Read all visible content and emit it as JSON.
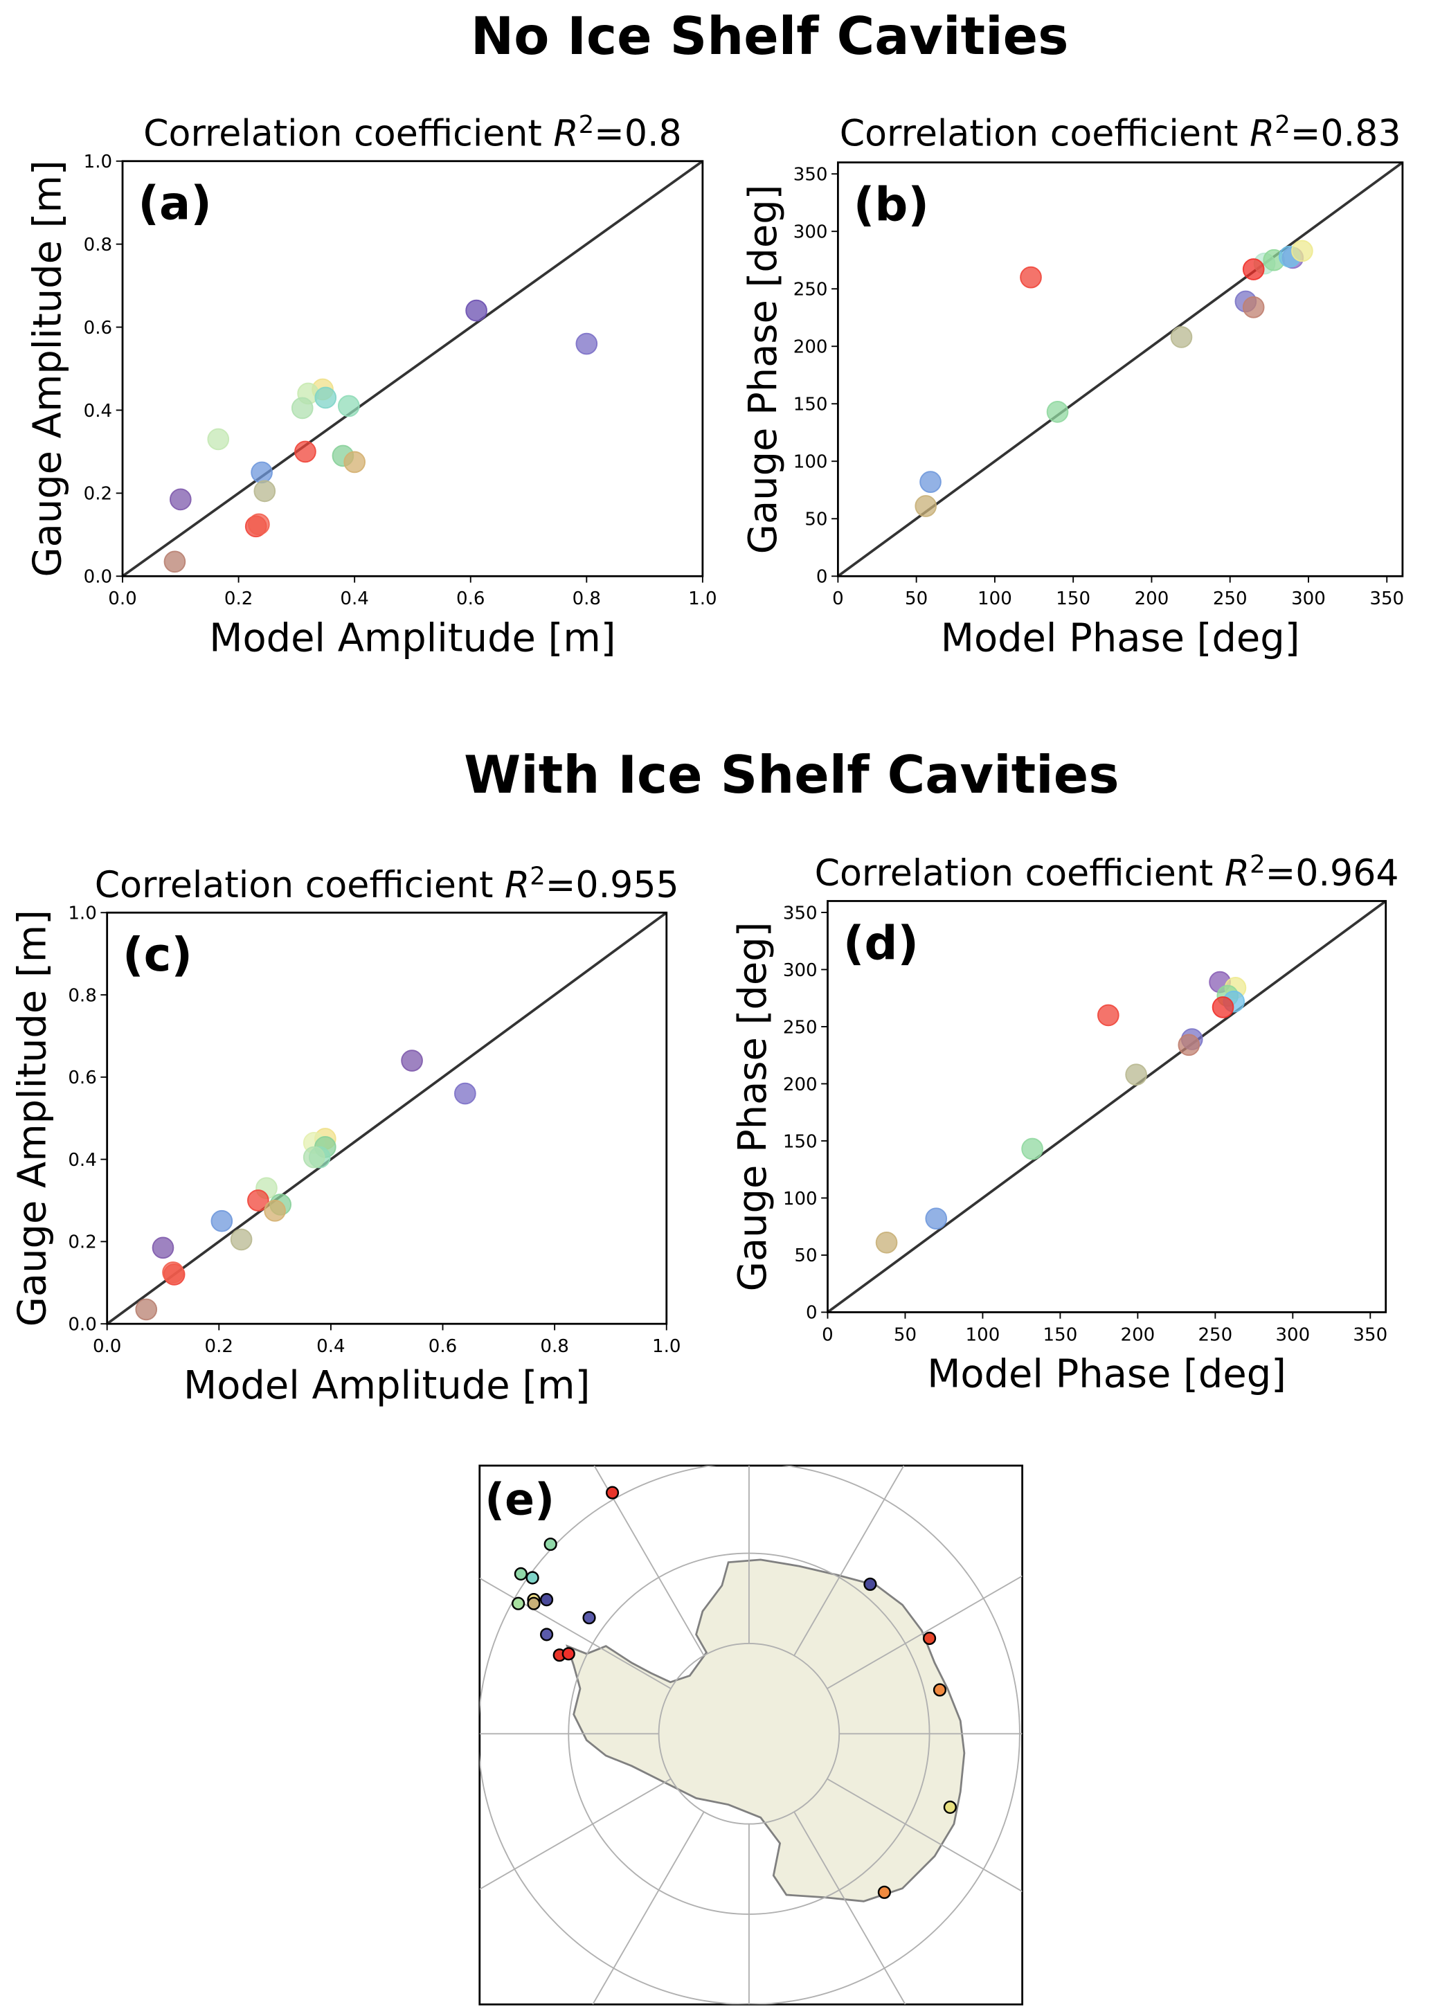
{
  "chart_data": [
    {
      "id": "a",
      "type": "scatter",
      "section": "No Ice Shelf Cavities",
      "panel_label": "(a)",
      "title_prefix": "Correlation coefficient ",
      "r2_label": "R",
      "r2_value": "=0.8",
      "xlabel": "Model Amplitude [m]",
      "ylabel": "Gauge Amplitude [m]",
      "xlim": [
        0,
        1.0
      ],
      "ylim": [
        0,
        1.0
      ],
      "xticks": [
        "0.0",
        "0.2",
        "0.4",
        "0.6",
        "0.8",
        "1.0"
      ],
      "yticks": [
        "0.0",
        "0.2",
        "0.4",
        "0.6",
        "0.8",
        "1.0"
      ],
      "points": [
        {
          "x": 0.61,
          "y": 0.64,
          "color": "#6a4fb0"
        },
        {
          "x": 0.8,
          "y": 0.56,
          "color": "#7b6fc6"
        },
        {
          "x": 0.345,
          "y": 0.45,
          "color": "#f0e08a"
        },
        {
          "x": 0.32,
          "y": 0.44,
          "color": "#c8eab0"
        },
        {
          "x": 0.35,
          "y": 0.43,
          "color": "#7fd4c8"
        },
        {
          "x": 0.31,
          "y": 0.405,
          "color": "#b0e0b0"
        },
        {
          "x": 0.39,
          "y": 0.41,
          "color": "#90dcb8"
        },
        {
          "x": 0.165,
          "y": 0.33,
          "color": "#c4e8b4"
        },
        {
          "x": 0.315,
          "y": 0.3,
          "color": "#f0453a"
        },
        {
          "x": 0.38,
          "y": 0.29,
          "color": "#88d09a"
        },
        {
          "x": 0.4,
          "y": 0.275,
          "color": "#d4b070"
        },
        {
          "x": 0.24,
          "y": 0.25,
          "color": "#6f98dc"
        },
        {
          "x": 0.245,
          "y": 0.205,
          "color": "#b8b890"
        },
        {
          "x": 0.1,
          "y": 0.185,
          "color": "#7e5aac"
        },
        {
          "x": 0.23,
          "y": 0.12,
          "color": "#f0453a"
        },
        {
          "x": 0.235,
          "y": 0.125,
          "color": "#f26050"
        },
        {
          "x": 0.09,
          "y": 0.035,
          "color": "#b88070"
        }
      ]
    },
    {
      "id": "b",
      "type": "scatter",
      "section": "No Ice Shelf Cavities",
      "panel_label": "(b)",
      "title_prefix": "Correlation coefficient ",
      "r2_label": "R",
      "r2_value": "=0.83",
      "xlabel": "Model Phase [deg]",
      "ylabel": "Gauge Phase [deg]",
      "xlim": [
        0,
        360
      ],
      "ylim": [
        0,
        360
      ],
      "xticks": [
        "0",
        "50",
        "100",
        "150",
        "200",
        "250",
        "300",
        "350"
      ],
      "yticks": [
        "0",
        "50",
        "100",
        "150",
        "200",
        "250",
        "300",
        "350"
      ],
      "points": [
        {
          "x": 123,
          "y": 260,
          "color": "#f0453a"
        },
        {
          "x": 272,
          "y": 272,
          "color": "#b8e8d0"
        },
        {
          "x": 278,
          "y": 275,
          "color": "#90d89a"
        },
        {
          "x": 290,
          "y": 277,
          "color": "#8a6fc6"
        },
        {
          "x": 288,
          "y": 278,
          "color": "#70c0e8"
        },
        {
          "x": 296,
          "y": 283,
          "color": "#eeea90"
        },
        {
          "x": 265,
          "y": 267,
          "color": "#f0302a"
        },
        {
          "x": 260,
          "y": 239,
          "color": "#7b74c6"
        },
        {
          "x": 265,
          "y": 234,
          "color": "#c08070"
        },
        {
          "x": 219,
          "y": 208,
          "color": "#b8b890"
        },
        {
          "x": 140,
          "y": 143,
          "color": "#90d8a0"
        },
        {
          "x": 59,
          "y": 82,
          "color": "#6f98dc"
        },
        {
          "x": 56,
          "y": 61,
          "color": "#c8b078"
        }
      ]
    },
    {
      "id": "c",
      "type": "scatter",
      "section": "With Ice Shelf Cavities",
      "panel_label": "(c)",
      "title_prefix": "Correlation coefficient ",
      "r2_label": "R",
      "r2_value": "=0.955",
      "xlabel": "Model Amplitude [m]",
      "ylabel": "Gauge Amplitude [m]",
      "xlim": [
        0,
        1.0
      ],
      "ylim": [
        0,
        1.0
      ],
      "xticks": [
        "0.0",
        "0.2",
        "0.4",
        "0.6",
        "0.8",
        "1.0"
      ],
      "yticks": [
        "0.0",
        "0.2",
        "0.4",
        "0.6",
        "0.8",
        "1.0"
      ],
      "points": [
        {
          "x": 0.545,
          "y": 0.64,
          "color": "#7e5aac"
        },
        {
          "x": 0.64,
          "y": 0.56,
          "color": "#7b6fc6"
        },
        {
          "x": 0.39,
          "y": 0.45,
          "color": "#f0e08a"
        },
        {
          "x": 0.37,
          "y": 0.44,
          "color": "#e4f0b0"
        },
        {
          "x": 0.39,
          "y": 0.43,
          "color": "#88d09a"
        },
        {
          "x": 0.38,
          "y": 0.405,
          "color": "#90dcb8"
        },
        {
          "x": 0.37,
          "y": 0.405,
          "color": "#b0e0b0"
        },
        {
          "x": 0.285,
          "y": 0.33,
          "color": "#c4e8b4"
        },
        {
          "x": 0.27,
          "y": 0.3,
          "color": "#f0453a"
        },
        {
          "x": 0.31,
          "y": 0.29,
          "color": "#88d09a"
        },
        {
          "x": 0.3,
          "y": 0.275,
          "color": "#d4b070"
        },
        {
          "x": 0.205,
          "y": 0.25,
          "color": "#6f98dc"
        },
        {
          "x": 0.24,
          "y": 0.205,
          "color": "#b8b890"
        },
        {
          "x": 0.1,
          "y": 0.185,
          "color": "#7e5aac"
        },
        {
          "x": 0.12,
          "y": 0.12,
          "color": "#f0453a"
        },
        {
          "x": 0.118,
          "y": 0.125,
          "color": "#f26050"
        },
        {
          "x": 0.07,
          "y": 0.035,
          "color": "#b88070"
        }
      ]
    },
    {
      "id": "d",
      "type": "scatter",
      "section": "With Ice Shelf Cavities",
      "panel_label": "(d)",
      "title_prefix": "Correlation coefficient ",
      "r2_label": "R",
      "r2_value": "=0.964",
      "xlabel": "Model Phase [deg]",
      "ylabel": "Gauge Phase [deg]",
      "xlim": [
        0,
        360
      ],
      "ylim": [
        0,
        360
      ],
      "xticks": [
        "0",
        "50",
        "100",
        "150",
        "200",
        "250",
        "300",
        "350"
      ],
      "yticks": [
        "0",
        "50",
        "100",
        "150",
        "200",
        "250",
        "300",
        "350"
      ],
      "points": [
        {
          "x": 181,
          "y": 260,
          "color": "#f0453a"
        },
        {
          "x": 253,
          "y": 289,
          "color": "#8a5fb6"
        },
        {
          "x": 263,
          "y": 284,
          "color": "#eeea90"
        },
        {
          "x": 258,
          "y": 277,
          "color": "#90d89a"
        },
        {
          "x": 262,
          "y": 272,
          "color": "#70c0e8"
        },
        {
          "x": 255,
          "y": 267,
          "color": "#f0302a"
        },
        {
          "x": 235,
          "y": 239,
          "color": "#7b74c6"
        },
        {
          "x": 233,
          "y": 234,
          "color": "#c08070"
        },
        {
          "x": 199,
          "y": 208,
          "color": "#b8b890"
        },
        {
          "x": 132,
          "y": 143,
          "color": "#90d8a0"
        },
        {
          "x": 70,
          "y": 82,
          "color": "#6f98dc"
        },
        {
          "x": 38,
          "y": 61,
          "color": "#c8b078"
        }
      ]
    }
  ],
  "sections": {
    "top": "No Ice Shelf Cavities",
    "bottom": "With Ice Shelf Cavities"
  },
  "map": {
    "panel_label": "(e)",
    "land_color": "#efeedd",
    "coast_color": "#808080",
    "grid_color": "#b0b0b0"
  }
}
